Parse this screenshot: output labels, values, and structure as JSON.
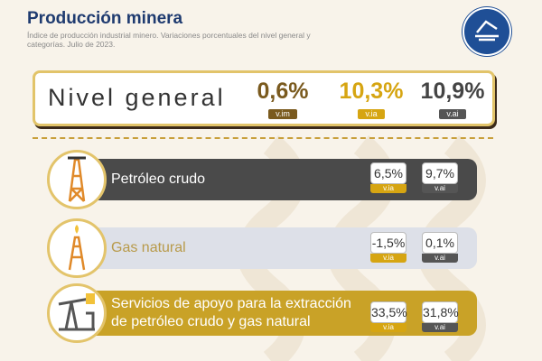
{
  "header": {
    "title": "Producción minera",
    "subtitle": "Índice de producción industrial minero. Variaciones porcentuales del nivel general y categorías. Julio de 2023."
  },
  "summary": {
    "label": "Nivel general",
    "metrics": [
      {
        "value": "0,6%",
        "label": "v.im"
      },
      {
        "value": "10,3%",
        "label": "v.ia"
      },
      {
        "value": "10,9%",
        "label": "v.ai"
      }
    ]
  },
  "rows": [
    {
      "label": "Petróleo crudo",
      "metrics": [
        {
          "value": "6,5%",
          "label": "v.ia"
        },
        {
          "value": "9,7%",
          "label": "v.ai"
        }
      ]
    },
    {
      "label": "Gas natural",
      "metrics": [
        {
          "value": "-1,5%",
          "label": "v.ia"
        },
        {
          "value": "0,1%",
          "label": "v.ai"
        }
      ]
    },
    {
      "label": "Servicios de apoyo para la extracción de petróleo crudo y gas natural",
      "metrics": [
        {
          "value": "33,5%",
          "label": "v.ia"
        },
        {
          "value": "31,8%",
          "label": "v.ai"
        }
      ]
    }
  ]
}
